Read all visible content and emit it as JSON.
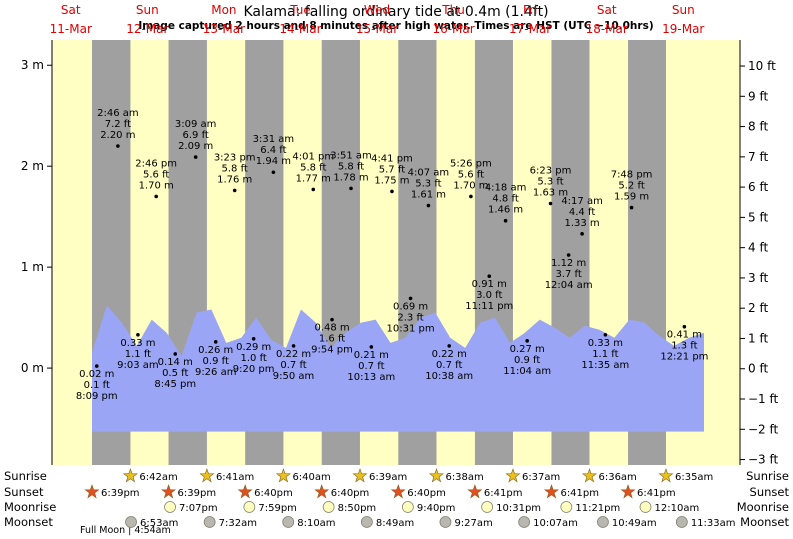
{
  "chart_data": {
    "type": "tide",
    "title": "Kalama: falling  ordinary tide at 0.4m (1.4ft)",
    "subtitle": "Image captured 2 hours and 8 minutes after high water. Times are HST (UTC −10.0hrs)",
    "ylim": [
      -0.96,
      3.25
    ],
    "yticks": [
      {
        "value": 0,
        "label": "0 m"
      },
      {
        "value": 1,
        "label": "1 m"
      },
      {
        "value": 2,
        "label": "2 m"
      },
      {
        "value": 3,
        "label": "3 m"
      }
    ],
    "y2lim": [
      -3.18,
      10.86
    ],
    "y2ticks": [
      {
        "value": -3,
        "label": "−3 ft"
      },
      {
        "value": -2,
        "label": "−2 ft"
      },
      {
        "value": -1,
        "label": "−1 ft"
      },
      {
        "value": 0,
        "label": "0 ft"
      },
      {
        "value": 1,
        "label": "1 ft"
      },
      {
        "value": 2,
        "label": "2 ft"
      },
      {
        "value": 3,
        "label": "3 ft"
      },
      {
        "value": 4,
        "label": "4 ft"
      },
      {
        "value": 5,
        "label": "5 ft"
      },
      {
        "value": 6,
        "label": "6 ft"
      },
      {
        "value": 7,
        "label": "7 ft"
      },
      {
        "value": 8,
        "label": "8 ft"
      },
      {
        "value": 9,
        "label": "9 ft"
      },
      {
        "value": 10,
        "label": "10 ft"
      }
    ],
    "row_labels": [
      "Sunrise",
      "Sunset",
      "Moonrise",
      "Moonset"
    ],
    "moon_phase": "Full Moon | 4:54am",
    "curve": {
      "color": "#9aa6f5",
      "base": -0.63,
      "values": [
        0.15,
        0.62,
        0.45,
        0.22,
        0.48,
        0.35,
        0.12,
        0.55,
        0.58,
        0.25,
        0.3,
        0.5,
        0.28,
        0.2,
        0.58,
        0.45,
        0.2,
        0.35,
        0.45,
        0.48,
        0.25,
        0.3,
        0.5,
        0.55,
        0.3,
        0.2,
        0.45,
        0.5,
        0.25,
        0.35,
        0.48,
        0.4,
        0.3,
        0.42,
        0.38,
        0.3,
        0.48,
        0.45,
        0.32,
        0.22,
        0.3,
        0.35
      ]
    },
    "days": [
      {
        "name": "Sat",
        "date": "11-Mar",
        "sunrise": null,
        "sunset": "6:39pm",
        "moonrise": null,
        "moonset": null,
        "tides": [
          {
            "time": "8:09 pm",
            "height_m": 0.02,
            "label_m": "0.02 m",
            "label_ft": "0.1 ft"
          }
        ]
      },
      {
        "name": "Sun",
        "date": "12-Mar",
        "sunrise": "6:42am",
        "sunset": "6:39pm",
        "moonrise": "7:07pm",
        "moonset": "6:53am",
        "tides": [
          {
            "time": "2:46 am",
            "height_m": 2.2,
            "label_m": "2.20 m",
            "label_ft": "7.2 ft"
          },
          {
            "time": "9:03 am",
            "height_m": 0.33,
            "label_m": "0.33 m",
            "label_ft": "1.1 ft"
          },
          {
            "time": "2:46 pm",
            "height_m": 1.7,
            "label_m": "1.70 m",
            "label_ft": "5.6 ft"
          },
          {
            "time": "8:45 pm",
            "height_m": 0.14,
            "label_m": "0.14 m",
            "label_ft": "0.5 ft"
          }
        ]
      },
      {
        "name": "Mon",
        "date": "13-Mar",
        "sunrise": "6:41am",
        "sunset": "6:40pm",
        "moonrise": "7:59pm",
        "moonset": "7:32am",
        "tides": [
          {
            "time": "3:09 am",
            "height_m": 2.09,
            "label_m": "2.09 m",
            "label_ft": "6.9 ft"
          },
          {
            "time": "9:26 am",
            "height_m": 0.26,
            "label_m": "0.26 m",
            "label_ft": "0.9 ft"
          },
          {
            "time": "3:23 pm",
            "height_m": 1.76,
            "label_m": "1.76 m",
            "label_ft": "5.8 ft"
          },
          {
            "time": "9:20 pm",
            "height_m": 0.29,
            "label_m": "0.29 m",
            "label_ft": "1.0 ft"
          }
        ]
      },
      {
        "name": "Tue",
        "date": "14-Mar",
        "sunrise": "6:40am",
        "sunset": "6:40pm",
        "moonrise": "8:50pm",
        "moonset": "8:10am",
        "tides": [
          {
            "time": "3:31 am",
            "height_m": 1.94,
            "label_m": "1.94 m",
            "label_ft": "6.4 ft"
          },
          {
            "time": "9:50 am",
            "height_m": 0.22,
            "label_m": "0.22 m",
            "label_ft": "0.7 ft"
          },
          {
            "time": "4:01 pm",
            "height_m": 1.77,
            "label_m": "1.77 m",
            "label_ft": "5.8 ft"
          },
          {
            "time": "9:54 pm",
            "height_m": 0.48,
            "label_m": "0.48 m",
            "label_ft": "1.6 ft"
          }
        ]
      },
      {
        "name": "Wed",
        "date": "15-Mar",
        "sunrise": "6:39am",
        "sunset": "6:40pm",
        "moonrise": "9:40pm",
        "moonset": "8:49am",
        "tides": [
          {
            "time": "3:51 am",
            "height_m": 1.78,
            "label_m": "1.78 m",
            "label_ft": "5.8 ft"
          },
          {
            "time": "10:13 am",
            "height_m": 0.21,
            "label_m": "0.21 m",
            "label_ft": "0.7 ft"
          },
          {
            "time": "4:41 pm",
            "height_m": 1.75,
            "label_m": "1.75 m",
            "label_ft": "5.7 ft"
          },
          {
            "time": "10:31 pm",
            "height_m": 0.69,
            "label_m": "0.69 m",
            "label_ft": "2.3 ft"
          }
        ]
      },
      {
        "name": "Thu",
        "date": "16-Mar",
        "sunrise": "6:38am",
        "sunset": "6:41pm",
        "moonrise": "10:31pm",
        "moonset": "9:27am",
        "tides": [
          {
            "time": "4:07 am",
            "height_m": 1.61,
            "label_m": "1.61 m",
            "label_ft": "5.3 ft"
          },
          {
            "time": "10:38 am",
            "height_m": 0.22,
            "label_m": "0.22 m",
            "label_ft": "0.7 ft"
          },
          {
            "time": "5:26 pm",
            "height_m": 1.7,
            "label_m": "1.70 m",
            "label_ft": "5.6 ft"
          },
          {
            "time": "11:11 pm",
            "height_m": 0.91,
            "label_m": "0.91 m",
            "label_ft": "3.0 ft"
          }
        ]
      },
      {
        "name": "Fri",
        "date": "17-Mar",
        "sunrise": "6:37am",
        "sunset": "6:41pm",
        "moonrise": "11:21pm",
        "moonset": "10:07am",
        "tides": [
          {
            "time": "4:18 am",
            "height_m": 1.46,
            "label_m": "1.46 m",
            "label_ft": "4.8 ft"
          },
          {
            "time": "11:04 am",
            "height_m": 0.27,
            "label_m": "0.27 m",
            "label_ft": "0.9 ft"
          },
          {
            "time": "6:23 pm",
            "height_m": 1.63,
            "label_m": "1.63 m",
            "label_ft": "5.3 ft"
          }
        ]
      },
      {
        "name": "Sat",
        "date": "18-Mar",
        "sunrise": "6:36am",
        "sunset": "6:41pm",
        "moonrise": null,
        "moonset": "10:49am",
        "tides": [
          {
            "time": "12:04 am",
            "height_m": 1.12,
            "label_m": "1.12 m",
            "label_ft": "3.7 ft"
          },
          {
            "time": "4:17 am",
            "height_m": 1.33,
            "label_m": "1.33 m",
            "label_ft": "4.4 ft"
          },
          {
            "time": "11:35 am",
            "height_m": 0.33,
            "label_m": "0.33 m",
            "label_ft": "1.1 ft"
          },
          {
            "time": "7:48 pm",
            "height_m": 1.59,
            "label_m": "1.59 m",
            "label_ft": "5.2 ft"
          }
        ]
      },
      {
        "name": "Sun",
        "date": "19-Mar",
        "sunrise": "6:35am",
        "sunset": null,
        "moonrise": "12:10am",
        "moonset": "11:33am",
        "tides": [
          {
            "time": "12:21 pm",
            "height_m": 0.41,
            "label_m": "0.41 m",
            "label_ft": "1.3 ft"
          }
        ]
      }
    ]
  }
}
